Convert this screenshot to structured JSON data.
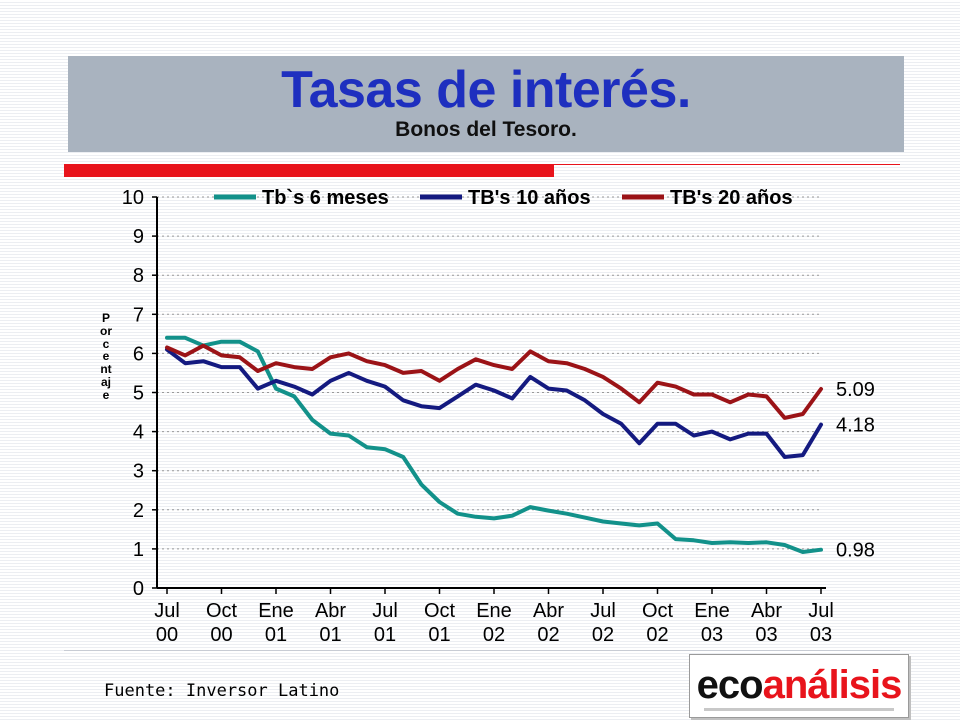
{
  "header": {
    "title": "Tasas de interés.",
    "subtitle": "Bonos del Tesoro."
  },
  "source": "Fuente: Inversor Latino",
  "logo": {
    "part1": "eco",
    "part2": "análisis"
  },
  "colors": {
    "title": "#1e2fbf",
    "accent_red": "#e8141c",
    "title_box": "#a9b3bf"
  },
  "chart_data": {
    "type": "line",
    "ylabel": "Porcentaje",
    "ylim": [
      0,
      10
    ],
    "yticks": [
      "0",
      "1",
      "2",
      "3",
      "4",
      "5",
      "6",
      "7",
      "8",
      "9",
      "10"
    ],
    "grid": "horizontal dotted",
    "legend_position": "top",
    "x_tick_labels": [
      [
        "Jul",
        "00"
      ],
      [
        "Oct",
        "00"
      ],
      [
        "Ene",
        "01"
      ],
      [
        "Abr",
        "01"
      ],
      [
        "Jul",
        "01"
      ],
      [
        "Oct",
        "01"
      ],
      [
        "Ene",
        "02"
      ],
      [
        "Abr",
        "02"
      ],
      [
        "Jul",
        "02"
      ],
      [
        "Oct",
        "02"
      ],
      [
        "Ene",
        "03"
      ],
      [
        "Abr",
        "03"
      ],
      [
        "Jul",
        "03"
      ]
    ],
    "series": [
      {
        "name": "Tb`s 6 meses",
        "color": "#12918a",
        "end_label": "0.98",
        "values": [
          6.4,
          6.4,
          6.2,
          6.3,
          6.3,
          6.05,
          5.1,
          4.9,
          4.3,
          3.95,
          3.9,
          3.6,
          3.55,
          3.35,
          2.65,
          2.2,
          1.9,
          1.82,
          1.78,
          1.85,
          2.07,
          1.98,
          1.9,
          1.8,
          1.7,
          1.65,
          1.6,
          1.65,
          1.25,
          1.22,
          1.15,
          1.17,
          1.15,
          1.17,
          1.1,
          0.92,
          0.98
        ]
      },
      {
        "name": "TB's 10 años",
        "color": "#141a80",
        "end_label": "4.18",
        "values": [
          6.1,
          5.75,
          5.8,
          5.65,
          5.65,
          5.1,
          5.3,
          5.15,
          4.95,
          5.3,
          5.5,
          5.3,
          5.15,
          4.8,
          4.65,
          4.6,
          4.9,
          5.2,
          5.05,
          4.85,
          5.4,
          5.1,
          5.05,
          4.8,
          4.45,
          4.2,
          3.7,
          4.2,
          4.2,
          3.9,
          4.0,
          3.8,
          3.95,
          3.95,
          3.35,
          3.4,
          4.18
        ]
      },
      {
        "name": "TB's 20 años",
        "color": "#9b1317",
        "end_label": "5.09",
        "values": [
          6.15,
          5.95,
          6.2,
          5.95,
          5.9,
          5.55,
          5.75,
          5.65,
          5.6,
          5.9,
          6.0,
          5.8,
          5.7,
          5.5,
          5.55,
          5.3,
          5.6,
          5.85,
          5.7,
          5.6,
          6.05,
          5.8,
          5.75,
          5.6,
          5.4,
          5.1,
          4.75,
          5.25,
          5.15,
          4.95,
          4.95,
          4.75,
          4.95,
          4.9,
          4.35,
          4.45,
          5.09
        ]
      }
    ]
  }
}
